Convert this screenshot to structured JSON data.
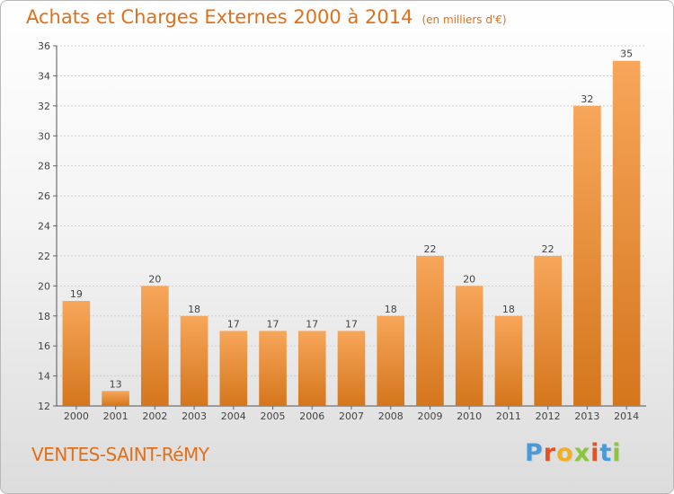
{
  "title": "Achats et Charges Externes 2000 à 2014",
  "subtitle": "(en milliers d'€)",
  "town": "VENTES-SAINT-RéMY",
  "logo": {
    "text": "Proxiti",
    "letters": [
      {
        "ch": "P",
        "color": "#4a9ad8"
      },
      {
        "ch": "r",
        "color": "#e8501e"
      },
      {
        "ch": "o",
        "color": "#f0b020"
      },
      {
        "ch": "x",
        "color": "#8cc43c"
      },
      {
        "ch": "i",
        "color": "#e8501e"
      },
      {
        "ch": "t",
        "color": "#4a9ad8"
      },
      {
        "ch": "i",
        "color": "#8cc43c"
      }
    ]
  },
  "colors": {
    "accent": "#e0701a",
    "bar_light": "#f7a65a",
    "bar_dark": "#d4761c"
  },
  "chart_data": {
    "type": "bar",
    "categories": [
      "2000",
      "2001",
      "2002",
      "2003",
      "2004",
      "2005",
      "2006",
      "2007",
      "2008",
      "2009",
      "2010",
      "2011",
      "2012",
      "2013",
      "2014"
    ],
    "values": [
      19,
      13,
      20,
      18,
      17,
      17,
      17,
      17,
      18,
      22,
      20,
      18,
      22,
      32,
      35
    ],
    "ylim": [
      12,
      36
    ],
    "yticks": [
      12,
      14,
      16,
      18,
      20,
      22,
      24,
      26,
      28,
      30,
      32,
      34,
      36
    ],
    "grid": true,
    "legend": "none"
  }
}
